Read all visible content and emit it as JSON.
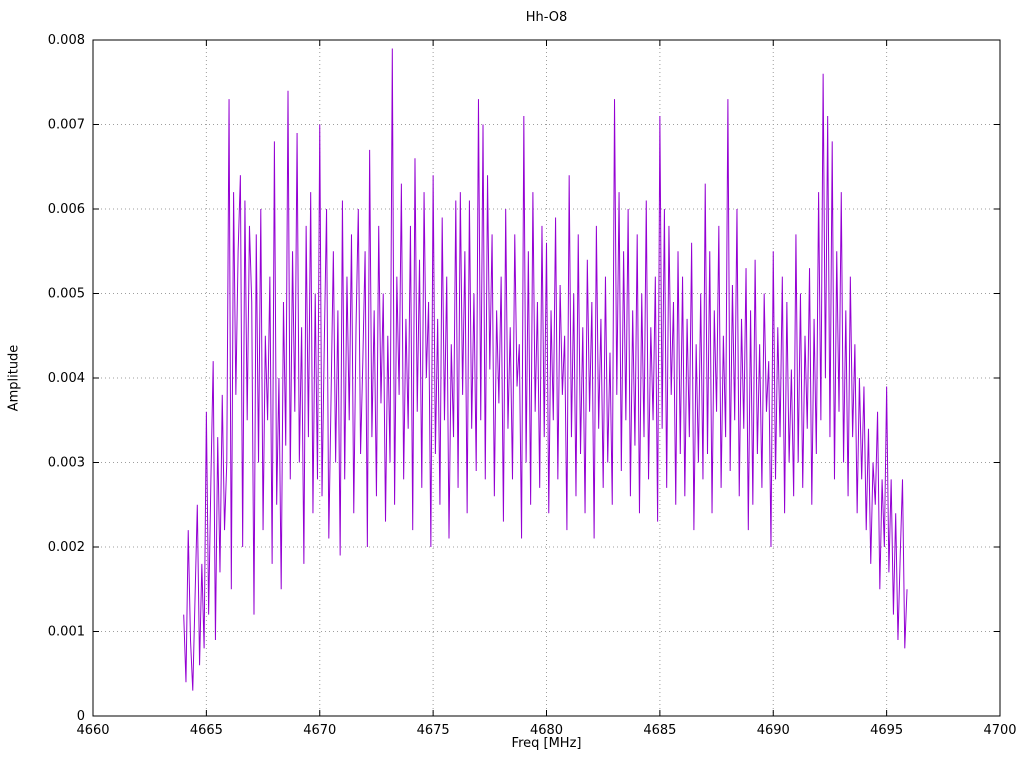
{
  "chart_data": {
    "type": "line",
    "title": "Hh-O8",
    "xlabel": "Freq [MHz]",
    "ylabel": "Amplitude",
    "xlim": [
      4660,
      4700
    ],
    "ylim": [
      0,
      0.008
    ],
    "x_ticks": [
      4660,
      4665,
      4670,
      4675,
      4680,
      4685,
      4690,
      4695,
      4700
    ],
    "y_ticks": [
      0,
      0.001,
      0.002,
      0.003,
      0.004,
      0.005,
      0.006,
      0.007,
      0.008
    ],
    "y_tick_labels": [
      "0",
      "0.001",
      "0.002",
      "0.003",
      "0.004",
      "0.005",
      "0.006",
      "0.007",
      "0.008"
    ],
    "grid": true,
    "legend": "none",
    "line_color": "#9400D3",
    "series": [
      {
        "name": "amplitude",
        "x_start": 4664.0,
        "x_step": 0.1,
        "y_scale": 0.0001,
        "values": [
          12,
          4,
          22,
          9,
          3,
          14,
          25,
          6,
          18,
          8,
          36,
          12,
          28,
          42,
          9,
          33,
          17,
          38,
          22,
          30,
          73,
          15,
          62,
          38,
          55,
          64,
          20,
          61,
          35,
          58,
          49,
          12,
          57,
          30,
          60,
          22,
          45,
          35,
          52,
          18,
          68,
          25,
          40,
          15,
          49,
          32,
          74,
          28,
          55,
          36,
          69,
          30,
          46,
          18,
          58,
          33,
          62,
          24,
          50,
          28,
          70,
          26,
          44,
          60,
          21,
          38,
          55,
          30,
          48,
          19,
          61,
          28,
          52,
          35,
          57,
          24,
          46,
          60,
          31,
          42,
          55,
          20,
          67,
          33,
          48,
          26,
          58,
          37,
          50,
          23,
          45,
          30,
          79,
          25,
          52,
          38,
          63,
          28,
          47,
          34,
          58,
          22,
          66,
          36,
          54,
          27,
          62,
          40,
          49,
          20,
          64,
          31,
          47,
          25,
          59,
          35,
          52,
          21,
          44,
          33,
          61,
          27,
          62,
          38,
          55,
          24,
          61,
          34,
          50,
          29,
          73,
          35,
          70,
          28,
          64,
          41,
          57,
          26,
          48,
          37,
          52,
          23,
          60,
          34,
          46,
          28,
          57,
          39,
          44,
          21,
          71,
          30,
          55,
          25,
          62,
          36,
          49,
          27,
          58,
          33,
          56,
          24,
          48,
          35,
          59,
          28,
          51,
          38,
          45,
          22,
          64,
          33,
          50,
          26,
          57,
          31,
          46,
          24,
          54,
          36,
          49,
          21,
          58,
          34,
          47,
          27,
          52,
          30,
          43,
          25,
          73,
          38,
          62,
          29,
          55,
          35,
          60,
          26,
          48,
          32,
          57,
          24,
          50,
          33,
          61,
          28,
          46,
          35,
          52,
          23,
          71,
          34,
          60,
          27,
          58,
          38,
          49,
          25,
          55,
          31,
          52,
          26,
          47,
          33,
          56,
          22,
          44,
          30,
          50,
          28,
          63,
          31,
          55,
          24,
          48,
          36,
          58,
          27,
          45,
          33,
          73,
          29,
          51,
          35,
          60,
          26,
          47,
          34,
          53,
          22,
          48,
          25,
          54,
          31,
          44,
          27,
          50,
          36,
          42,
          20,
          55,
          28,
          46,
          33,
          52,
          24,
          49,
          30,
          41,
          26,
          57,
          30,
          50,
          27,
          45,
          34,
          53,
          25,
          47,
          31,
          62,
          35,
          76,
          40,
          71,
          33,
          68,
          28,
          55,
          36,
          62,
          30,
          48,
          26,
          52,
          33,
          44,
          24,
          40,
          28,
          39,
          22,
          34,
          18,
          30,
          25,
          36,
          15,
          28,
          20,
          39,
          17,
          28,
          12,
          24,
          9,
          19,
          28,
          8,
          15
        ]
      }
    ]
  }
}
